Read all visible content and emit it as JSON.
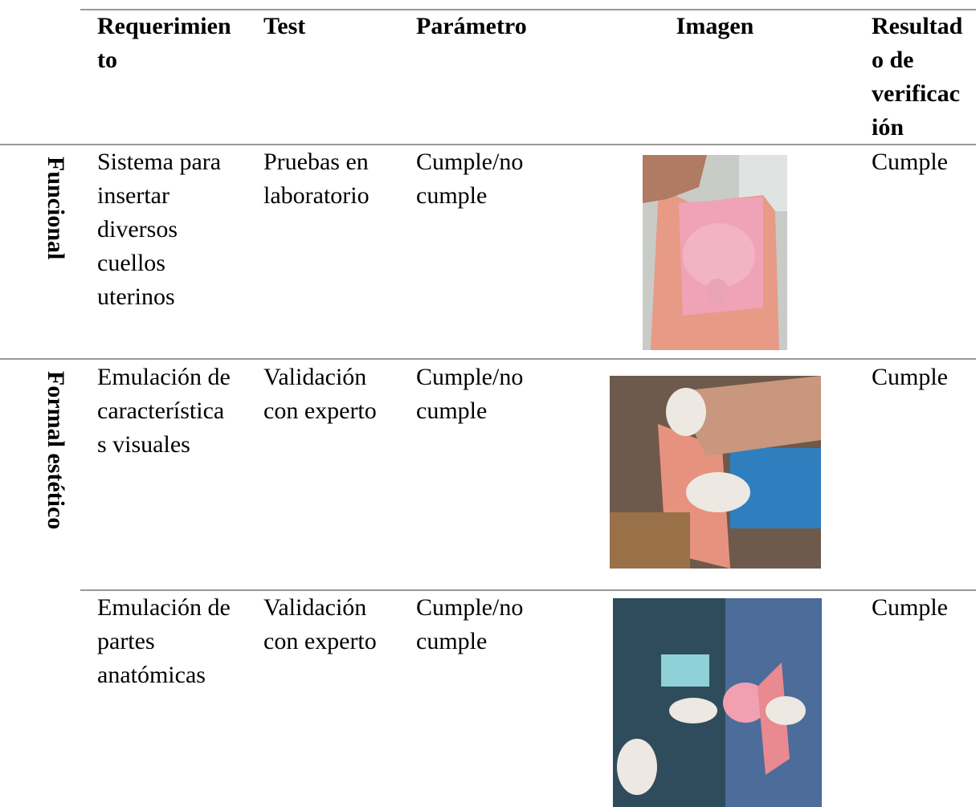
{
  "table": {
    "header": [
      "Requerimiento",
      "Test",
      "Parámetro",
      "Imagen",
      "Resultado de verificación"
    ],
    "rows": [
      {
        "group": "Funcional",
        "requirement": "Sistema para insertar diversos cuellos uterinos",
        "test": "Pruebas en laboratorio",
        "parameter": "Cumple/no cumple",
        "result": "Cumple"
      },
      {
        "group": "Formal estético",
        "requirement": "Emulación de características visuales",
        "test": "Validación con experto",
        "parameter": "Cumple/no cumple",
        "result": "Cumple"
      },
      {
        "requirement": "Emulación de partes anatómicas",
        "test": "Validación con experto",
        "parameter": "Cumple/no cumple",
        "result": "Cumple"
      }
    ]
  }
}
